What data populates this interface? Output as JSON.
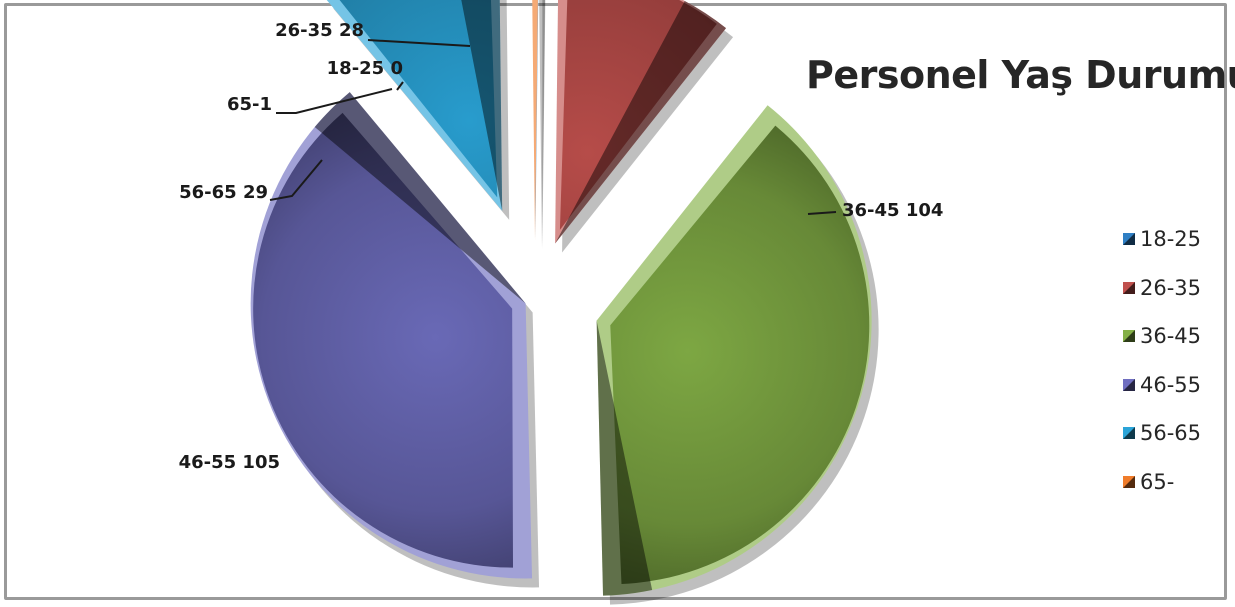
{
  "chart_data": {
    "type": "pie",
    "title": "Personel Yaş Durumu",
    "categories": [
      "18-25",
      "26-35",
      "36-45",
      "46-55",
      "56-65",
      "65-"
    ],
    "values": [
      0,
      28,
      104,
      105,
      29,
      1
    ],
    "data_labels": [
      "18-25 0",
      "26-35 28",
      "36-45 104",
      "46-55 105",
      "56-65 29",
      "65-1"
    ],
    "colors": [
      "#2f7fc4",
      "#c0504d",
      "#84b046",
      "#6f6ec0",
      "#2aa4d8",
      "#f07c2a"
    ],
    "legend_position": "right",
    "exploded": true,
    "style": "3d-bevel"
  }
}
